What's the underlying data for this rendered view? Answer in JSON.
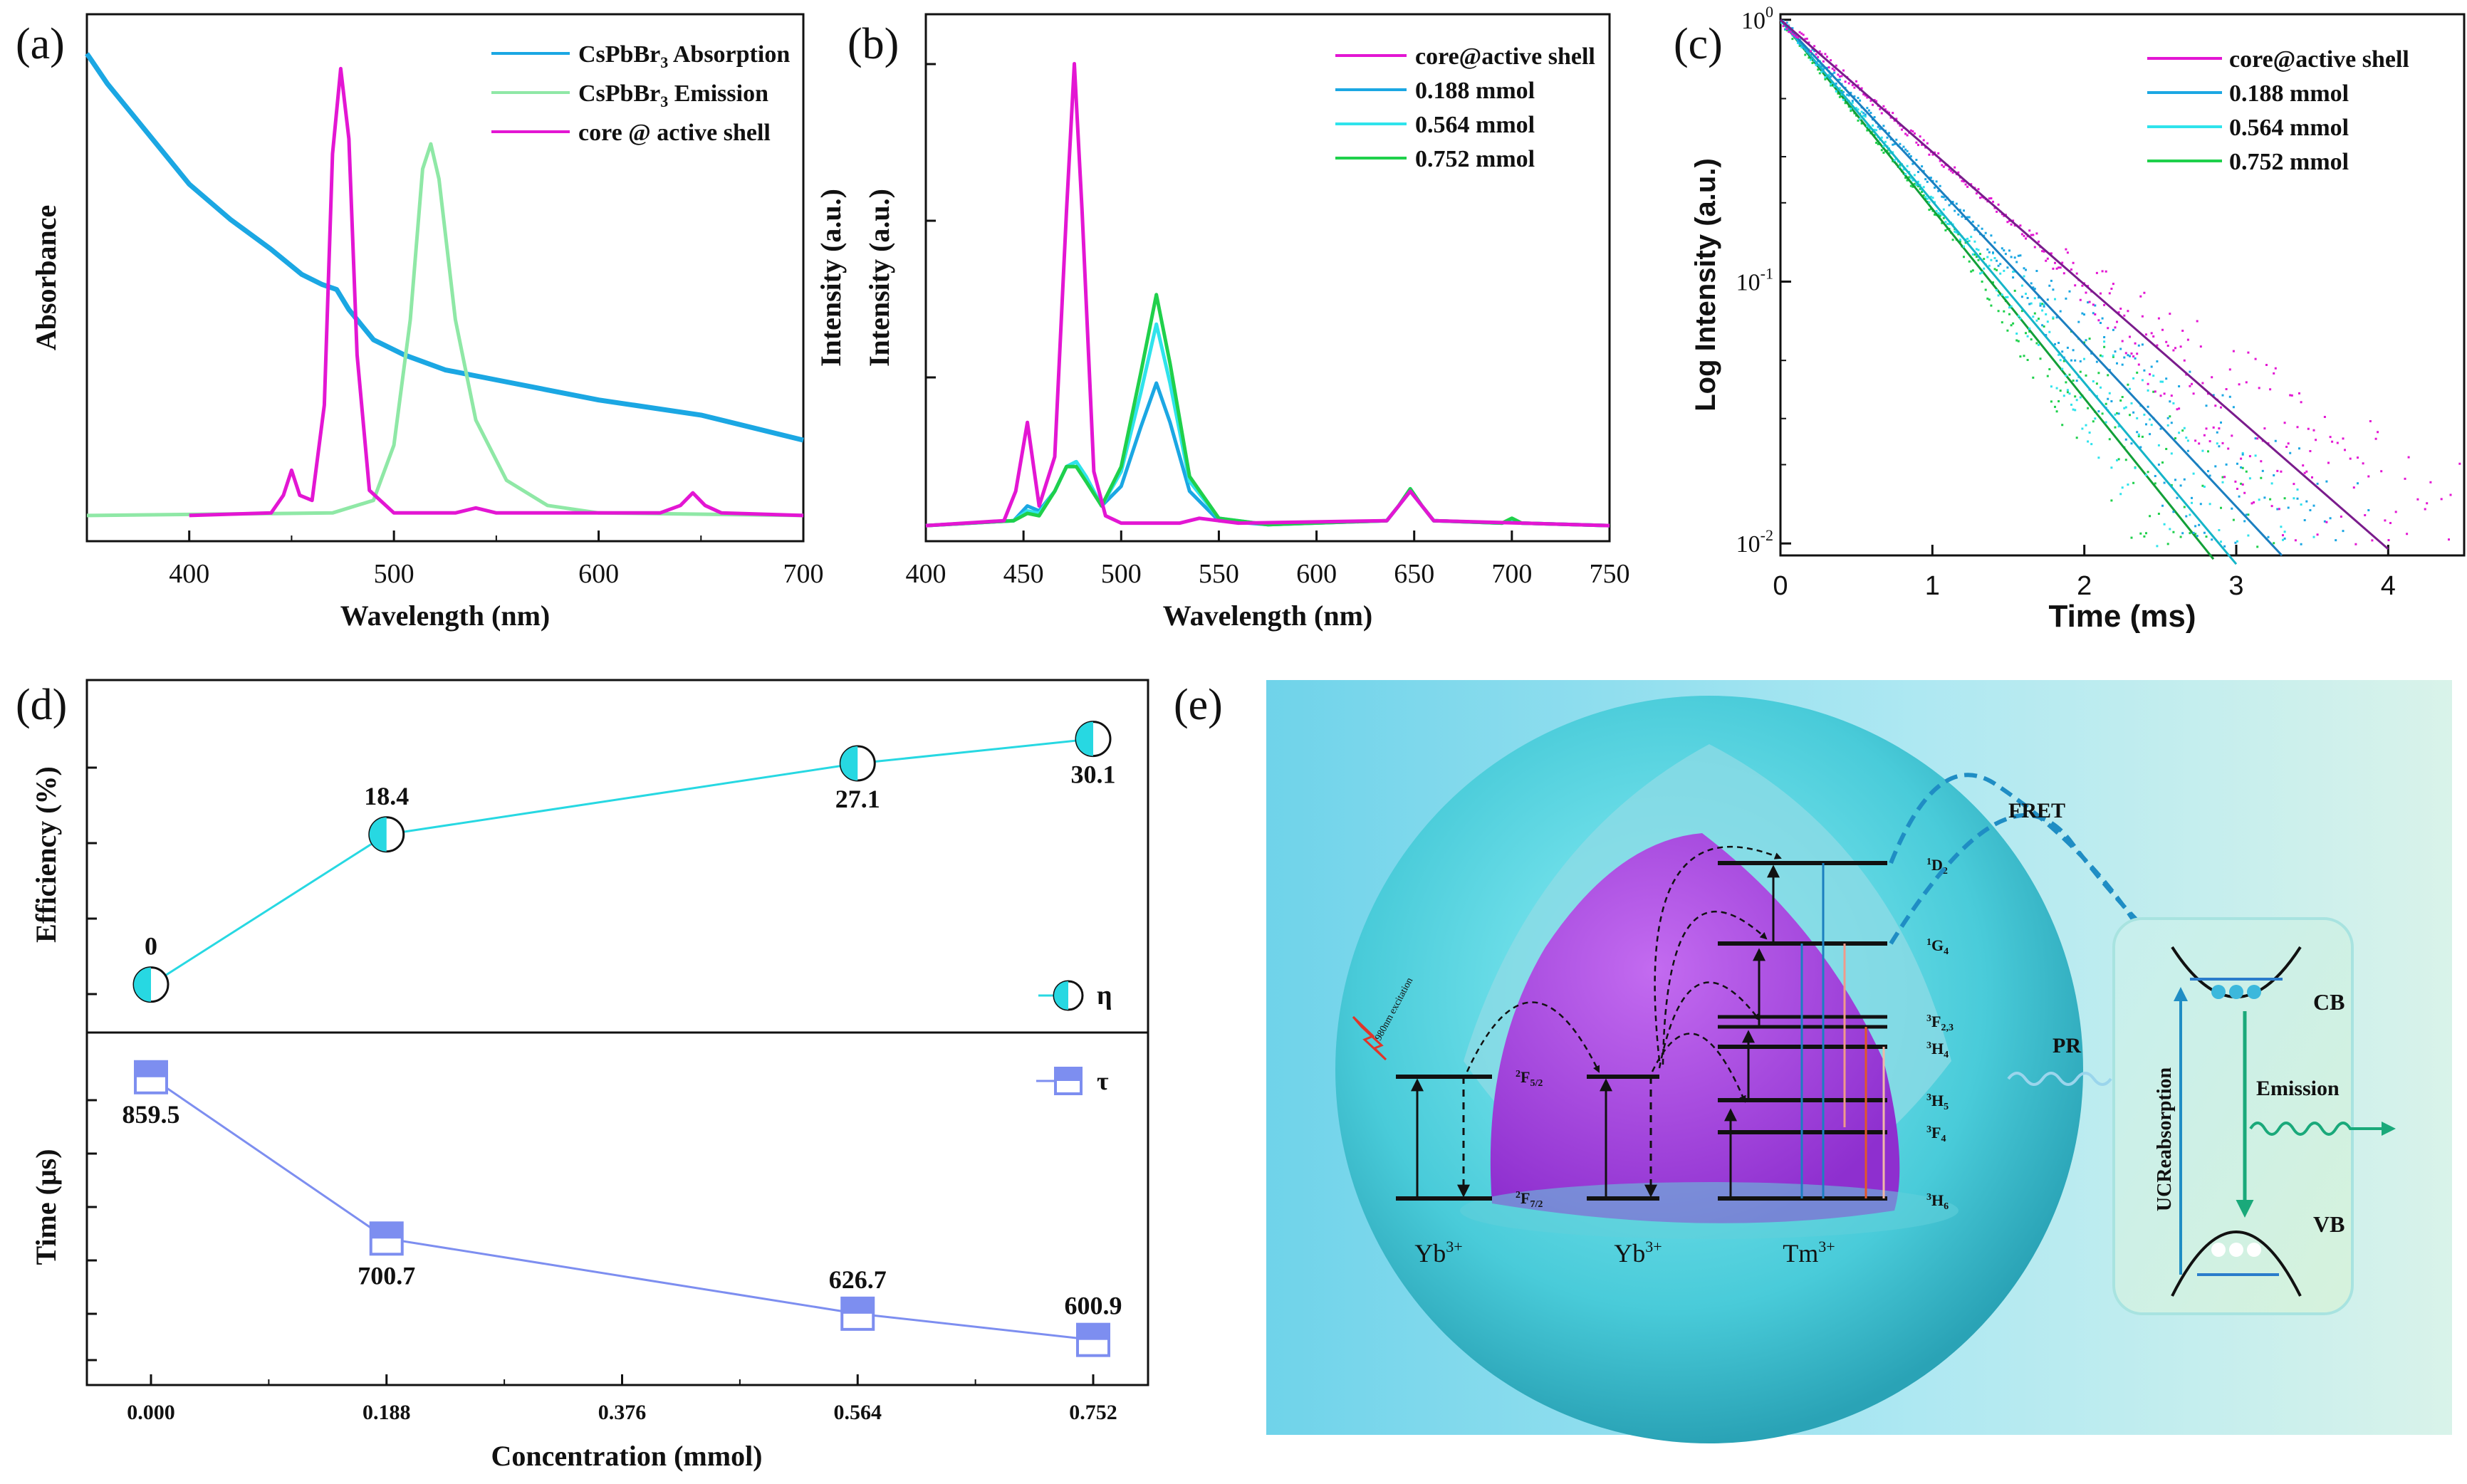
{
  "chart_data": [
    {
      "id": "a",
      "panel_label": "(a)",
      "type": "line",
      "xlabel": "Wavelength (nm)",
      "ylabel": "Absorbance",
      "xlim": [
        350,
        700
      ],
      "ylim": [
        0,
        1
      ],
      "xticks": [
        "400",
        "500",
        "600",
        "700"
      ],
      "series": [
        {
          "name": "CsPbBr3 Absorption",
          "legend_main": "CsPbBr",
          "legend_sub": "3",
          "legend_rest": " Absorption",
          "color": "#1ba7e3",
          "x": [
            350,
            360,
            380,
            400,
            420,
            440,
            455,
            465,
            472,
            478,
            490,
            505,
            525,
            550,
            600,
            650,
            700
          ],
          "y": [
            0.95,
            0.89,
            0.79,
            0.69,
            0.62,
            0.56,
            0.51,
            0.49,
            0.48,
            0.44,
            0.38,
            0.35,
            0.32,
            0.3,
            0.26,
            0.23,
            0.18
          ]
        },
        {
          "name": "CsPbBr3 Emission",
          "legend_main": "CsPbBr",
          "legend_sub": "3",
          "legend_rest": " Emission",
          "color": "#8fe8a6",
          "x": [
            350,
            470,
            490,
            500,
            508,
            514,
            518,
            522,
            530,
            540,
            555,
            575,
            600,
            700
          ],
          "y": [
            0.03,
            0.035,
            0.06,
            0.17,
            0.42,
            0.72,
            0.77,
            0.7,
            0.42,
            0.22,
            0.1,
            0.05,
            0.035,
            0.03
          ]
        },
        {
          "name": "core @ active shell",
          "legend_main": "core @ active shell",
          "legend_sub": "",
          "legend_rest": "",
          "color": "#e316d3",
          "x": [
            400,
            440,
            446,
            450,
            454,
            460,
            466,
            470,
            474,
            478,
            482,
            488,
            500,
            530,
            540,
            550,
            630,
            640,
            646,
            652,
            660,
            700
          ],
          "y": [
            0.03,
            0.035,
            0.07,
            0.12,
            0.07,
            0.06,
            0.25,
            0.75,
            0.92,
            0.78,
            0.35,
            0.08,
            0.035,
            0.035,
            0.045,
            0.035,
            0.035,
            0.05,
            0.075,
            0.05,
            0.035,
            0.03
          ]
        }
      ]
    },
    {
      "id": "b",
      "panel_label": "(b)",
      "type": "line",
      "xlabel": "Wavelength (nm)",
      "ylabel": "Intensity (a.u.)",
      "xlim": [
        400,
        750
      ],
      "ylim": [
        0,
        1
      ],
      "xticks": [
        "400",
        "450",
        "500",
        "550",
        "600",
        "650",
        "700",
        "750"
      ],
      "series": [
        {
          "name": "core@active shell",
          "color": "#e316d3",
          "x": [
            400,
            440,
            446,
            452,
            458,
            466,
            472,
            476,
            480,
            486,
            492,
            500,
            530,
            540,
            560,
            636,
            642,
            648,
            654,
            660,
            750
          ],
          "y": [
            0.01,
            0.02,
            0.08,
            0.22,
            0.05,
            0.15,
            0.65,
            0.95,
            0.65,
            0.12,
            0.03,
            0.015,
            0.015,
            0.025,
            0.015,
            0.02,
            0.05,
            0.08,
            0.05,
            0.02,
            0.01
          ]
        },
        {
          "name": "0.188 mmol",
          "color": "#1ba7e3",
          "x": [
            400,
            445,
            452,
            458,
            466,
            472,
            477,
            482,
            490,
            500,
            510,
            518,
            525,
            535,
            550,
            575,
            636,
            642,
            648,
            654,
            660,
            695,
            700,
            705,
            750
          ],
          "y": [
            0.01,
            0.02,
            0.05,
            0.04,
            0.08,
            0.13,
            0.14,
            0.11,
            0.05,
            0.09,
            0.21,
            0.3,
            0.22,
            0.08,
            0.02,
            0.012,
            0.02,
            0.05,
            0.08,
            0.05,
            0.02,
            0.015,
            0.02,
            0.015,
            0.01
          ]
        },
        {
          "name": "0.564 mmol",
          "color": "#2fe3ec",
          "x": [
            400,
            445,
            452,
            458,
            466,
            472,
            477,
            482,
            490,
            500,
            510,
            518,
            525,
            535,
            550,
            575,
            636,
            642,
            648,
            654,
            660,
            695,
            700,
            705,
            750
          ],
          "y": [
            0.01,
            0.02,
            0.04,
            0.035,
            0.08,
            0.13,
            0.14,
            0.11,
            0.05,
            0.12,
            0.28,
            0.42,
            0.3,
            0.1,
            0.025,
            0.012,
            0.02,
            0.05,
            0.085,
            0.05,
            0.02,
            0.015,
            0.02,
            0.015,
            0.01
          ]
        },
        {
          "name": "0.752 mmol",
          "color": "#1fd04b",
          "x": [
            400,
            445,
            452,
            458,
            466,
            472,
            477,
            482,
            490,
            500,
            510,
            518,
            525,
            535,
            550,
            575,
            636,
            642,
            648,
            654,
            660,
            695,
            700,
            705,
            750
          ],
          "y": [
            0.01,
            0.02,
            0.035,
            0.03,
            0.08,
            0.13,
            0.13,
            0.1,
            0.05,
            0.13,
            0.32,
            0.48,
            0.34,
            0.11,
            0.025,
            0.012,
            0.02,
            0.05,
            0.085,
            0.05,
            0.02,
            0.015,
            0.025,
            0.015,
            0.01
          ]
        }
      ]
    },
    {
      "id": "c",
      "panel_label": "(c)",
      "type": "scatter",
      "xlabel": "Time (ms)",
      "ylabel": "Log Intensity (a.u.)",
      "xlim": [
        0,
        4.5
      ],
      "ylim_log": [
        0.009,
        1.05
      ],
      "yscale": "log",
      "xticks": [
        "0",
        "1",
        "2",
        "3",
        "4"
      ],
      "yticks": [
        {
          "base": "10",
          "exp": "0"
        },
        {
          "base": "10",
          "exp": "-1"
        },
        {
          "base": "10",
          "exp": "-2"
        }
      ],
      "series": [
        {
          "name": "core@active shell",
          "color": "#e316d3",
          "line_color": "#7a1c8c",
          "tau_ms": 0.8595,
          "end_ms": 4.0
        },
        {
          "name": "0.188 mmol",
          "color": "#1ba7e3",
          "line_color": "#1b7fc0",
          "tau_ms": 0.7007,
          "end_ms": 3.3
        },
        {
          "name": "0.564 mmol",
          "color": "#2fe3ec",
          "line_color": "#15b5c8",
          "tau_ms": 0.6267,
          "end_ms": 3.0
        },
        {
          "name": "0.752 mmol",
          "color": "#1fd04b",
          "line_color": "#12a038",
          "tau_ms": 0.6009,
          "end_ms": 2.85
        }
      ]
    },
    {
      "id": "d",
      "panel_label": "(d)",
      "type": "line",
      "xlabel": "Concentration (mmol)",
      "categories": [
        "0.000",
        "0.188",
        "0.376",
        "0.564",
        "0.752"
      ],
      "x": [
        0,
        0.188,
        0.564,
        0.752
      ],
      "top": {
        "ylabel": "Efficiency (%)",
        "name": "η",
        "color": "#27d8e2",
        "values": [
          0,
          18.4,
          27.1,
          30.1
        ],
        "labels": [
          "0",
          "18.4",
          "27.1",
          "30.1"
        ],
        "ylim": [
          -5,
          36
        ]
      },
      "bottom": {
        "ylabel": "Time  (μs)",
        "name": "τ",
        "color": "#7d8ef0",
        "values": [
          859.5,
          700.7,
          626.7,
          600.9
        ],
        "labels": [
          "859.5",
          "700.7",
          "626.7",
          "600.9"
        ],
        "ylim": [
          560,
          900
        ]
      }
    }
  ],
  "diagram": {
    "panel_label": "(e)",
    "ions": [
      "Yb",
      "Yb",
      "Tm"
    ],
    "ion_sup": "3+",
    "yb_levels": [
      {
        "main": "2",
        "tail": "F",
        "sub": "5/2"
      },
      {
        "main": "2",
        "tail": "F",
        "sub": "7/2"
      }
    ],
    "tm_levels": [
      {
        "sup": "1",
        "main": "D",
        "sub": "2"
      },
      {
        "sup": "1",
        "main": "G",
        "sub": "4"
      },
      {
        "sup": "3",
        "main": "F",
        "sub": "2,3"
      },
      {
        "sup": "3",
        "main": "H",
        "sub": "4"
      },
      {
        "sup": "3",
        "main": "H",
        "sub": "5"
      },
      {
        "sup": "3",
        "main": "F",
        "sub": "4"
      },
      {
        "sup": "3",
        "main": "H",
        "sub": "6"
      }
    ],
    "excitation_label": "980nm excitation",
    "fret": "FRET",
    "pr": "PR",
    "cb": "CB",
    "vb": "VB",
    "emission": "Emission",
    "reabsorption": "UCReabsorption",
    "colors": {
      "cyan": "#3ec8d6",
      "magenta": "#a04ae0",
      "fret": "#1f8dc4",
      "emission": "#1aa97a"
    }
  }
}
